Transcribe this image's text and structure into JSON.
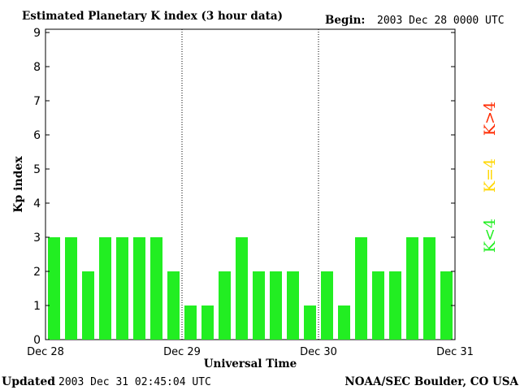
{
  "header": {
    "title": "Estimated Planetary K index (3 hour data)",
    "begin_label": "Begin:",
    "begin_value": "2003 Dec 28 0000 UTC"
  },
  "footer": {
    "updated_label": "Updated",
    "updated_value": "2003 Dec 31 02:45:04 UTC",
    "credit": "NOAA/SEC Boulder, CO USA"
  },
  "legend": {
    "items": [
      {
        "label": "K>4",
        "color": "#ff2a00"
      },
      {
        "label": "K=4",
        "color": "#ffd700"
      },
      {
        "label": "K<4",
        "color": "#22ee22"
      }
    ]
  },
  "chart_data": {
    "type": "bar",
    "xlabel": "Universal Time",
    "ylabel": "Kp index",
    "ylim": [
      0,
      9
    ],
    "yticks": [
      0,
      1,
      2,
      3,
      4,
      5,
      6,
      7,
      8,
      9
    ],
    "grid": false,
    "day_labels": [
      "Dec 28",
      "Dec 29",
      "Dec 30",
      "Dec 31"
    ],
    "bar_color": "#22ee22",
    "values": [
      3,
      3,
      2,
      3,
      3,
      3,
      3,
      2,
      1,
      1,
      2,
      3,
      2,
      2,
      2,
      1,
      2,
      1,
      3,
      2,
      2,
      3,
      3,
      2
    ]
  }
}
